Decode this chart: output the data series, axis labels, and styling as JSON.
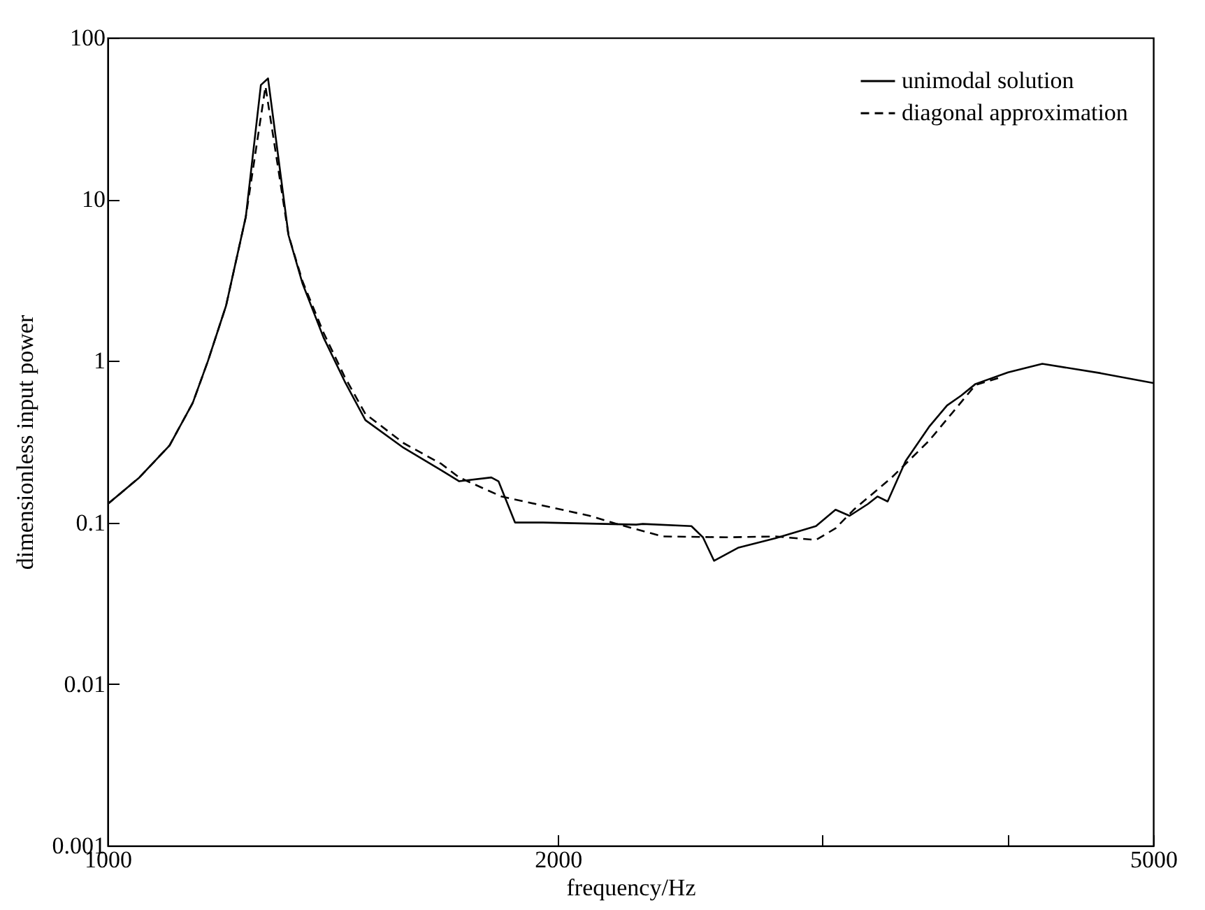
{
  "chart_data": {
    "type": "line",
    "xlabel": "frequency/Hz",
    "ylabel": "dimensionless input power",
    "log": "xy",
    "xlim": [
      1000,
      5000
    ],
    "xticks": [
      1000,
      2000,
      {
        "value": 3000,
        "label": null
      },
      {
        "value": 4000,
        "label": null
      },
      5000
    ],
    "ylim": [
      0.001,
      100
    ],
    "yticks": [
      0.001,
      0.01,
      0.1,
      1,
      10,
      100
    ],
    "grid": false,
    "legend": "top right",
    "series": [
      {
        "name": "unimodal solution",
        "color": "#000000",
        "line_style": "solid",
        "x": [
          1000,
          1050,
          1100,
          1140,
          1167,
          1200,
          1237,
          1266,
          1280,
          1321,
          1350,
          1394,
          1440,
          1487,
          1577,
          1672,
          1718,
          1805,
          1825,
          1872,
          1954,
          2256,
          2279,
          2456,
          2500,
          2543,
          2641,
          2796,
          2975,
          3066,
          3133,
          3222,
          3271,
          3322,
          3415,
          3540,
          3640,
          3720,
          3803,
          3999,
          4215,
          4610,
          5000
        ],
        "values": [
          0.13,
          0.19,
          0.3,
          0.55,
          1.0,
          2.2,
          7.8,
          51,
          56,
          6.0,
          3.0,
          1.4,
          0.75,
          0.43,
          0.29,
          0.21,
          0.18,
          0.19,
          0.18,
          0.1,
          0.1,
          0.097,
          0.098,
          0.095,
          0.081,
          0.058,
          0.07,
          0.08,
          0.095,
          0.12,
          0.11,
          0.13,
          0.145,
          0.135,
          0.24,
          0.39,
          0.53,
          0.61,
          0.72,
          0.85,
          0.96,
          0.84,
          0.73
        ]
      },
      {
        "name": "diagonal approximation",
        "color": "#000000",
        "line_style": "dashed",
        "x": [
          1000,
          1050,
          1100,
          1140,
          1167,
          1200,
          1237,
          1275,
          1321,
          1350,
          1394,
          1440,
          1487,
          1577,
          1672,
          1718,
          1833,
          2100,
          2190,
          2350,
          2600,
          2796,
          2975,
          3066,
          3153,
          3343,
          3540,
          3803,
          3950
        ],
        "values": [
          0.13,
          0.19,
          0.3,
          0.55,
          1.0,
          2.2,
          7.8,
          50,
          6.0,
          3.1,
          1.5,
          0.8,
          0.47,
          0.31,
          0.23,
          0.19,
          0.145,
          0.11,
          0.098,
          0.082,
          0.081,
          0.082,
          0.078,
          0.092,
          0.12,
          0.19,
          0.32,
          0.71,
          0.79
        ]
      }
    ]
  }
}
